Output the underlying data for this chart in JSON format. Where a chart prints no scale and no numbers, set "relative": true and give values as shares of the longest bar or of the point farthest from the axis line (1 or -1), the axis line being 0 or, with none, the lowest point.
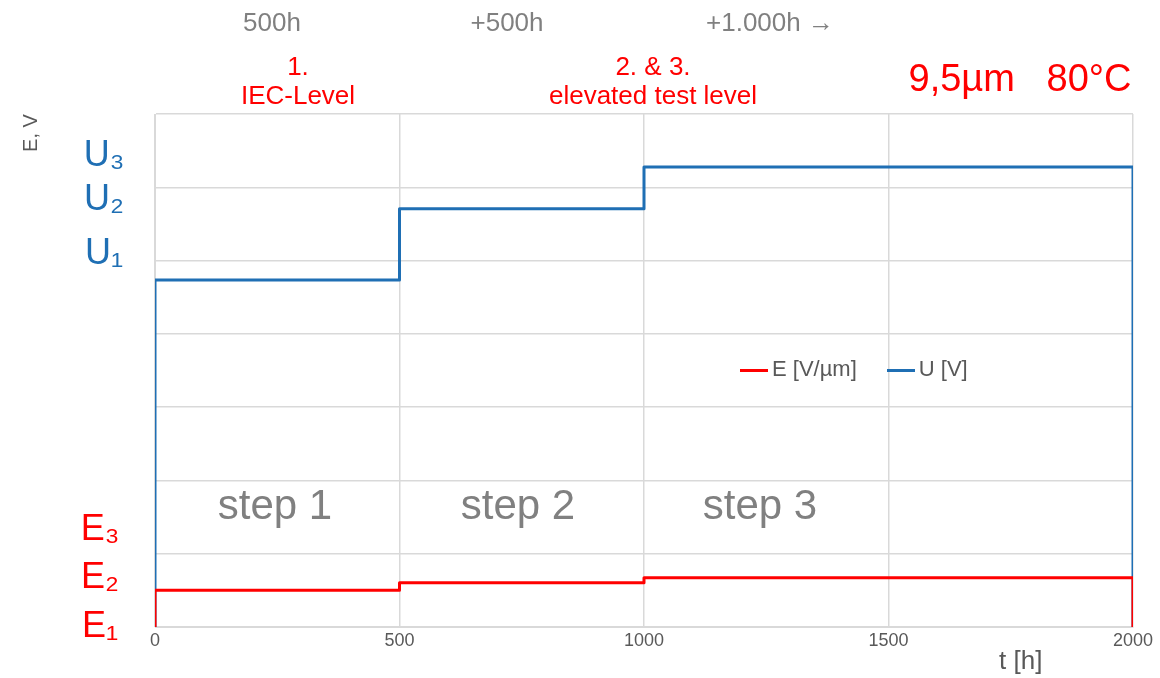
{
  "chart_data": {
    "type": "line",
    "relative": true,
    "xlabel": "t [h]",
    "xlim": [
      0,
      2000
    ],
    "xticks": [
      0,
      500,
      1000,
      1500,
      2000
    ],
    "tick_labels": "x",
    "grid": true,
    "legend": "right",
    "marker": "none",
    "line_style": "solid",
    "series": [
      {
        "name": "E [V/µm]",
        "color": "#ff0000",
        "x": [
          0,
          0,
          500,
          500,
          1000,
          1000,
          2000,
          2000
        ],
        "values": [
          0,
          0.08,
          0.08,
          0.096,
          0.096,
          0.107,
          0.107,
          0
        ]
      },
      {
        "name": "U [V]",
        "color": "#1f6fb4",
        "x": [
          0,
          0,
          500,
          500,
          1000,
          1000,
          2000,
          2000
        ],
        "values": [
          0,
          0.754,
          0.754,
          0.909,
          0.909,
          1,
          1,
          0
        ]
      }
    ],
    "annotations": [
      "500h",
      "+500h",
      "+1.000h →",
      "1.\nIEC-Level",
      "2. & 3.\nelevated test level",
      "9,5µm   80°C",
      "step 1",
      "step 2",
      "step 3",
      "U₃",
      "U₂",
      "U₁",
      "E₃",
      "E₂",
      "E₁",
      "E, V"
    ]
  }
}
